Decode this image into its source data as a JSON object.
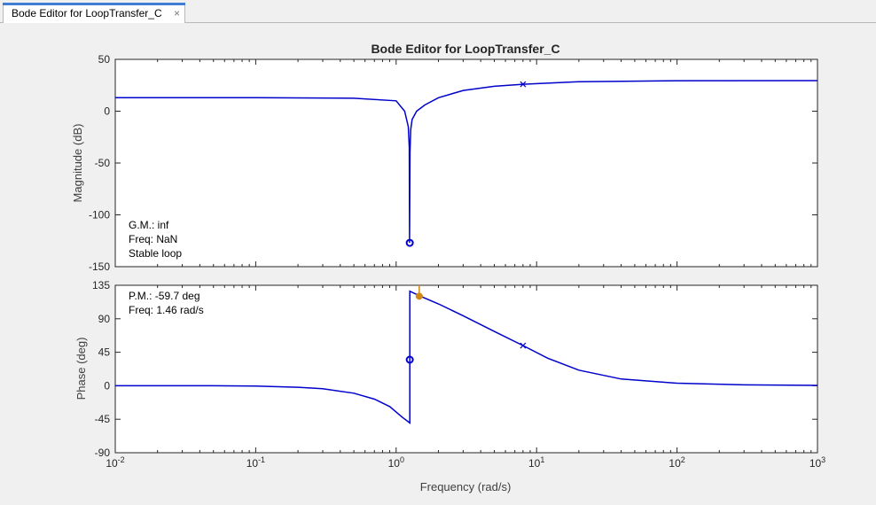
{
  "tab": {
    "label": "Bode Editor for LoopTransfer_C",
    "close_glyph": "×",
    "accent_color": "#3f7ed4"
  },
  "figure": {
    "background": "#f0f0f0",
    "line_color": "#0000cc",
    "marker_color": "#d28814"
  },
  "chart_data": [
    {
      "type": "line",
      "title": "Bode Editor for LoopTransfer_C",
      "xlabel": "",
      "ylabel": "Magnitude (dB)",
      "xscale": "log",
      "xlim": [
        0.01,
        1000
      ],
      "ylim": [
        -150,
        50
      ],
      "yticks": [
        50,
        0,
        -50,
        -100,
        -150
      ],
      "grid": false,
      "series": [
        {
          "x": [
            0.01,
            0.1,
            0.5,
            1.0,
            1.15,
            1.22,
            1.24,
            1.245,
            1.255,
            1.27,
            1.3,
            1.4,
            1.6,
            2,
            3,
            5,
            8,
            20,
            100,
            1000
          ],
          "y": [
            13,
            13,
            12.5,
            10,
            0,
            -15,
            -35,
            -127,
            -40,
            -18,
            -8,
            0,
            6,
            13,
            20,
            24,
            26,
            28.5,
            29.4,
            29.5
          ]
        }
      ],
      "markers": {
        "pole_x": 8,
        "pole_y": 26,
        "zero_x": 1.25,
        "zero_y": -127
      },
      "annotations": [
        "G.M.: inf",
        "Freq: NaN",
        "Stable loop"
      ]
    },
    {
      "type": "line",
      "title": "",
      "xlabel": "Frequency (rad/s)",
      "ylabel": "Phase (deg)",
      "xscale": "log",
      "xlim": [
        0.01,
        1000
      ],
      "ylim": [
        -90,
        135
      ],
      "yticks": [
        135,
        90,
        45,
        0,
        -45,
        -90
      ],
      "xticks": [
        {
          "base": "10",
          "exp": "-2"
        },
        {
          "base": "10",
          "exp": "-1"
        },
        {
          "base": "10",
          "exp": "0"
        },
        {
          "base": "10",
          "exp": "1"
        },
        {
          "base": "10",
          "exp": "2"
        },
        {
          "base": "10",
          "exp": "3"
        }
      ],
      "grid": false,
      "series": [
        {
          "x": [
            0.01,
            0.05,
            0.1,
            0.2,
            0.3,
            0.5,
            0.7,
            0.9,
            1.1,
            1.25,
            1.251,
            1.5,
            2,
            3,
            5,
            8,
            12,
            20,
            40,
            100,
            300,
            1000
          ],
          "y": [
            0,
            0,
            -0.5,
            -2,
            -4,
            -10,
            -18,
            -28,
            -42,
            -50,
            127,
            120,
            110,
            94,
            73,
            54,
            37,
            21,
            9,
            3.5,
            1.2,
            0.5
          ]
        }
      ],
      "markers": {
        "pole_x": 8,
        "pole_y": 54,
        "zero_x": 1.25,
        "zero_y": 35,
        "pm_x": 1.46,
        "pm_y": 120.3
      },
      "annotations": [
        "P.M.: -59.7 deg",
        "Freq: 1.46 rad/s"
      ]
    }
  ]
}
